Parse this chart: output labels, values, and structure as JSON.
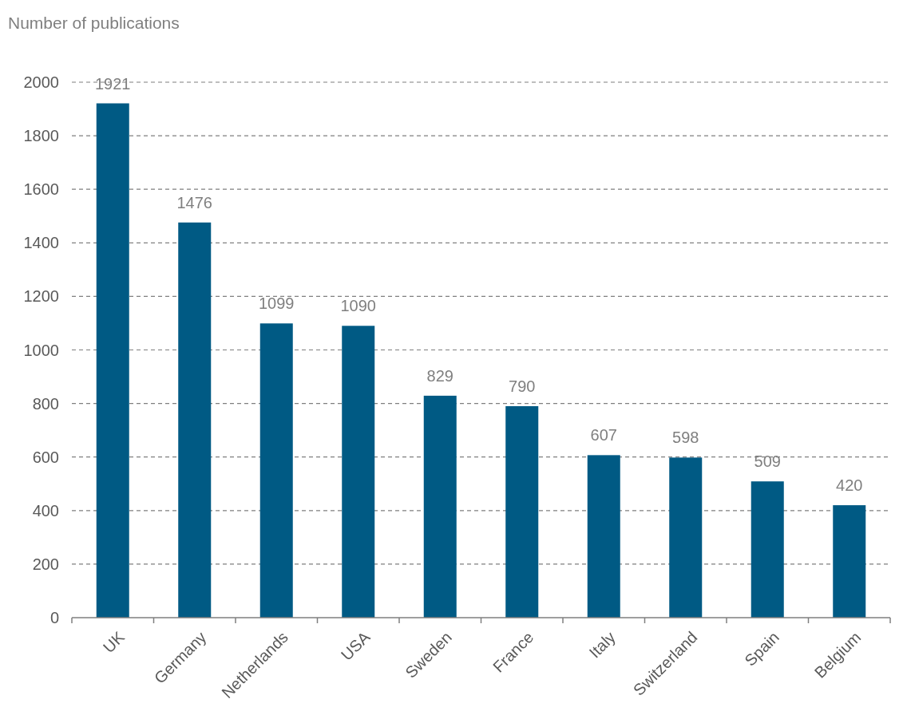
{
  "chart_data": {
    "type": "bar",
    "ylabel": "Number of publications",
    "categories": [
      "UK",
      "Germany",
      "Netherlands",
      "USA",
      "Sweden",
      "France",
      "Italy",
      "Switzerland",
      "Spain",
      "Belgium"
    ],
    "values": [
      1921,
      1476,
      1099,
      1090,
      829,
      790,
      607,
      598,
      509,
      420
    ],
    "color": "#005a84",
    "ylim": [
      0,
      2000
    ],
    "yticks": [
      0,
      200,
      400,
      600,
      800,
      1000,
      1200,
      1400,
      1600,
      1800,
      2000
    ],
    "grid": "y",
    "data_labels": true
  }
}
